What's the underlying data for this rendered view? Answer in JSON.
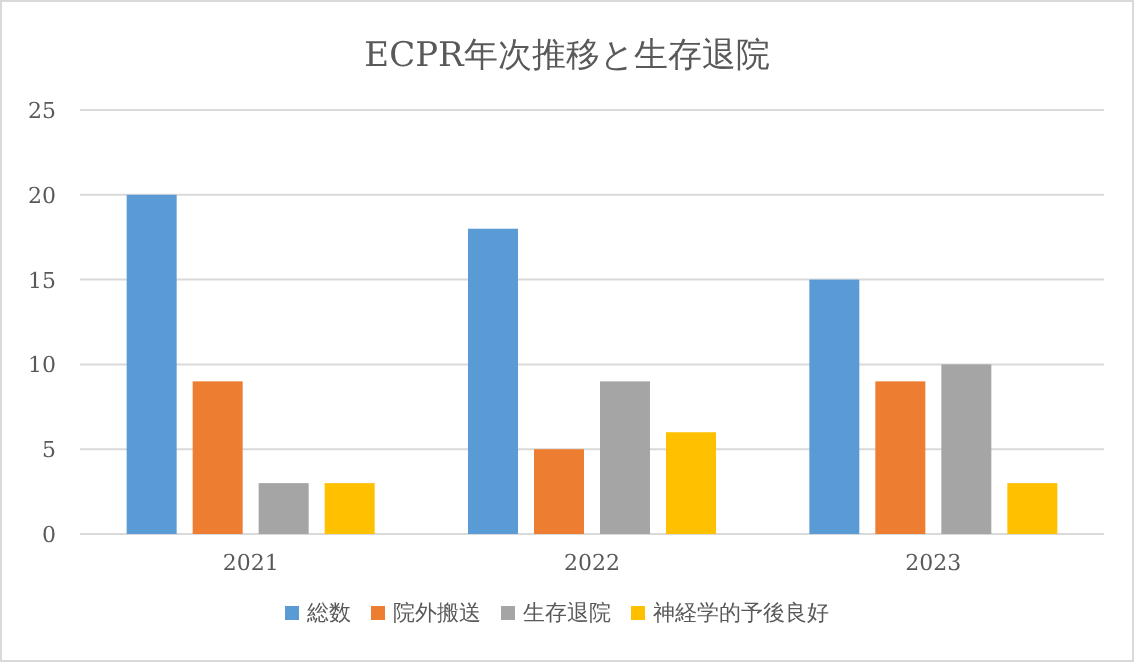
{
  "chart_data": {
    "type": "bar",
    "title": "ECPR年次推移と生存退院",
    "categories": [
      "2021",
      "2022",
      "2023"
    ],
    "series": [
      {
        "name": "総数",
        "color": "#5b9bd5",
        "values": [
          20,
          18,
          15
        ]
      },
      {
        "name": "院外搬送",
        "color": "#ed7d31",
        "values": [
          9,
          5,
          9
        ]
      },
      {
        "name": "生存退院",
        "color": "#a5a5a5",
        "values": [
          3,
          9,
          10
        ]
      },
      {
        "name": "神経学的予後良好",
        "color": "#ffc000",
        "values": [
          3,
          6,
          3
        ]
      }
    ],
    "ylim": [
      0,
      25
    ],
    "yticks": [
      0,
      5,
      10,
      15,
      20,
      25
    ],
    "grid": "y",
    "legend": "bottom"
  }
}
